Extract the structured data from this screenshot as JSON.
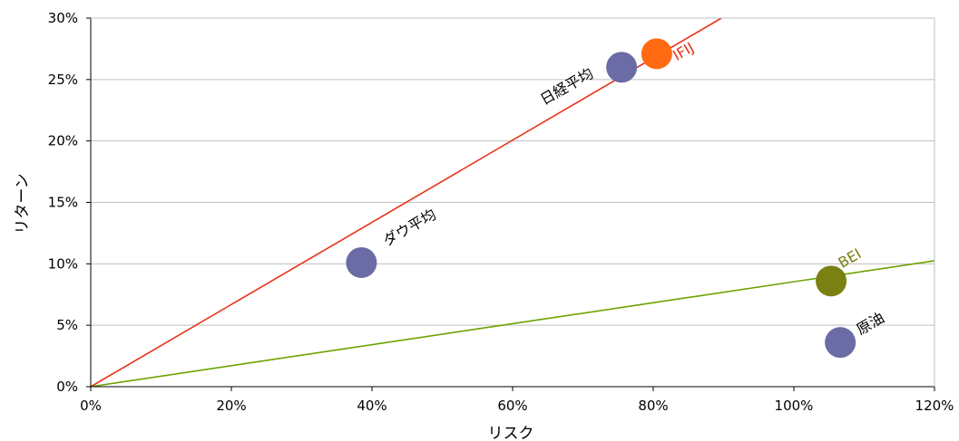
{
  "chart_data": {
    "type": "scatter",
    "title": "",
    "xlabel": "リスク",
    "ylabel": "リターン",
    "xlim": [
      0,
      120
    ],
    "ylim": [
      0,
      30
    ],
    "x_ticks": [
      "0%",
      "20%",
      "40%",
      "60%",
      "80%",
      "100%",
      "120%"
    ],
    "y_ticks": [
      "0%",
      "5%",
      "10%",
      "15%",
      "20%",
      "25%",
      "30%"
    ],
    "grid": "horizontal",
    "points": [
      {
        "label": "ダウ平均",
        "x": 38.5,
        "y": 10.1,
        "color": "#6b6ba6",
        "label_color": "#000000"
      },
      {
        "label": "日経平均",
        "x": 75.5,
        "y": 26.0,
        "color": "#6b6ba6",
        "label_color": "#000000"
      },
      {
        "label": "IFIJ",
        "x": 80.5,
        "y": 27.1,
        "color": "#ff6a13",
        "label_color": "#e8321a"
      },
      {
        "label": "BEI",
        "x": 105.3,
        "y": 8.6,
        "color": "#7a8012",
        "label_color": "#7a8012"
      },
      {
        "label": "原油",
        "x": 106.6,
        "y": 3.6,
        "color": "#6b6ba6",
        "label_color": "#000000"
      }
    ],
    "lines": [
      {
        "name": "",
        "color": "#e8321a",
        "x": [
          0,
          89.7
        ],
        "y": [
          0,
          30
        ]
      },
      {
        "name": "",
        "color": "#6aa300",
        "x": [
          0,
          120
        ],
        "y": [
          0,
          10.25
        ]
      }
    ]
  }
}
